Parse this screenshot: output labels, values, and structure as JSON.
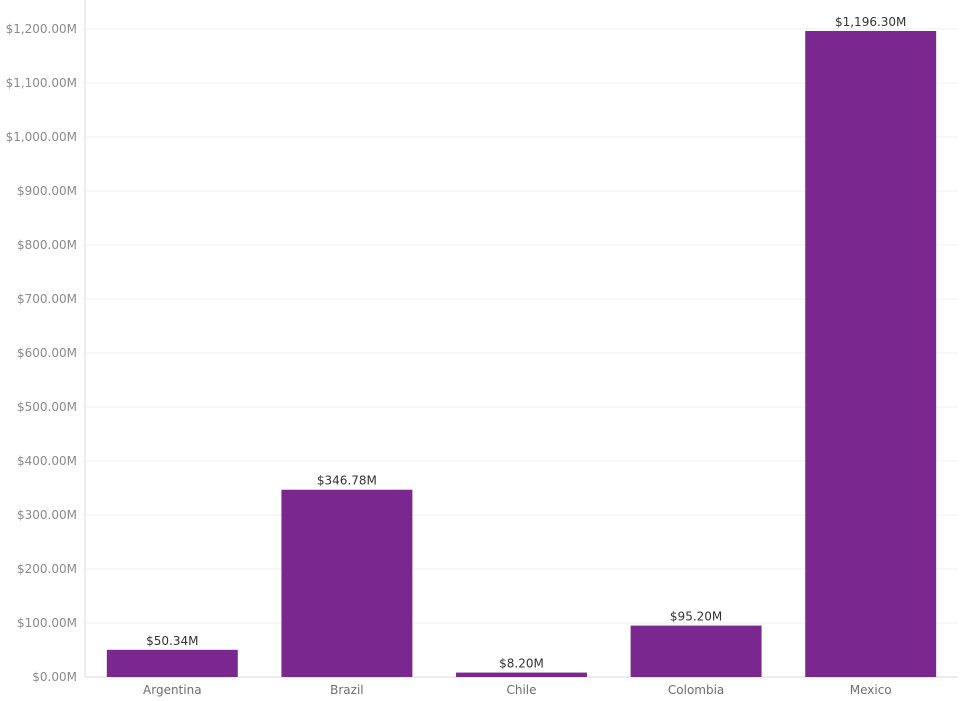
{
  "chart_data": {
    "type": "bar",
    "title": "",
    "xlabel": "",
    "ylabel": "",
    "categories": [
      "Argentina",
      "Brazil",
      "Chile",
      "Colombia",
      "Mexico"
    ],
    "values": [
      50.34,
      346.78,
      8.2,
      95.2,
      1196.3
    ],
    "data_labels": [
      "$50.34M",
      "$346.78M",
      "$8.20M",
      "$95.20M",
      "$1,196.30M"
    ],
    "ylim": [
      0,
      1200
    ],
    "y_ticks": [
      0,
      100,
      200,
      300,
      400,
      500,
      600,
      700,
      800,
      900,
      1000,
      1100,
      1200
    ],
    "y_tick_labels": [
      "$0.00M",
      "$100.00M",
      "$200.00M",
      "$300.00M",
      "$400.00M",
      "$500.00M",
      "$600.00M",
      "$700.00M",
      "$800.00M",
      "$900.00M",
      "$1,000.00M",
      "$1,100.00M",
      "$1,200.00M"
    ],
    "grid": true,
    "legend": "none",
    "bar_color": "#7a288f",
    "grid_color": "#efefef",
    "axis_color": "#d9d9d9"
  }
}
